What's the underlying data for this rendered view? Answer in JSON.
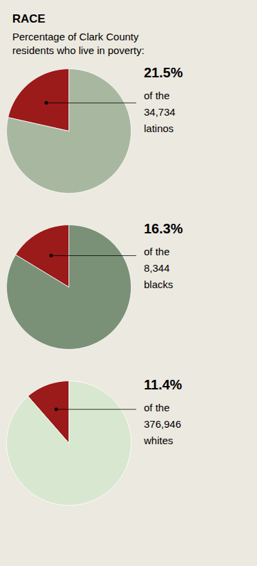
{
  "chart_data": [
    {
      "type": "pie",
      "title": "RACE",
      "subtitle": "Percentage of Clark County\nresidents who live in poverty:",
      "values": [
        21.5,
        78.5
      ],
      "colors": [
        "#9b1a1a",
        "#a8b8a0"
      ],
      "data_labels": true,
      "value_labels": [
        "21.5%",
        null
      ],
      "annotations": [
        "of the",
        "34,734",
        "latinos"
      ]
    },
    {
      "type": "pie",
      "values": [
        16.3,
        83.7
      ],
      "colors": [
        "#9b1a1a",
        "#7a9178"
      ],
      "data_labels": true,
      "value_labels": [
        "16.3%",
        null
      ],
      "annotations": [
        "of the",
        "8,344",
        "blacks"
      ]
    },
    {
      "type": "pie",
      "values": [
        11.4,
        88.6
      ],
      "colors": [
        "#9b1a1a",
        "#d8e8d0"
      ],
      "data_labels": true,
      "value_labels": [
        "11.4%",
        null
      ],
      "annotations": [
        "of the",
        "376,946",
        "whites"
      ]
    }
  ]
}
